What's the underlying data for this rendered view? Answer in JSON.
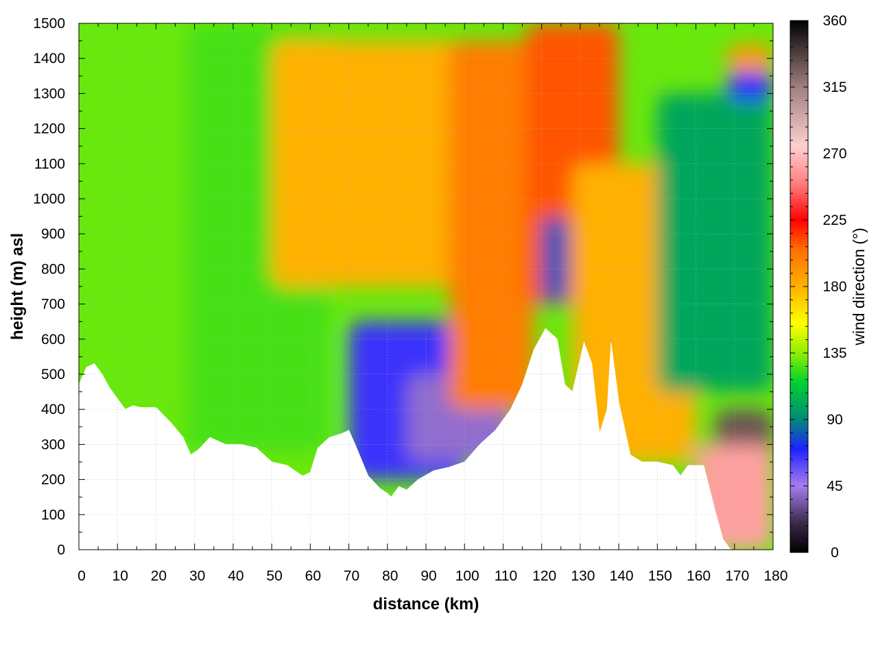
{
  "chart_data": {
    "type": "heatmap",
    "title": "",
    "xlabel": "distance (km)",
    "ylabel": "height (m) asl",
    "xlim": [
      0,
      180
    ],
    "ylim": [
      0,
      1500
    ],
    "x_ticks": [
      0,
      10,
      20,
      30,
      40,
      50,
      60,
      70,
      80,
      90,
      100,
      110,
      120,
      130,
      140,
      150,
      160,
      170,
      180
    ],
    "y_ticks": [
      0,
      100,
      200,
      300,
      400,
      500,
      600,
      700,
      800,
      900,
      1000,
      1100,
      1200,
      1300,
      1400,
      1500
    ],
    "grid": true,
    "colorbar": {
      "label": "wind direction (°)",
      "range": [
        0,
        360
      ],
      "ticks": [
        0,
        45,
        90,
        135,
        180,
        225,
        270,
        315,
        360
      ],
      "colors": [
        {
          "value": 0,
          "color": "#000000"
        },
        {
          "value": 20,
          "color": "#3a2a4a"
        },
        {
          "value": 45,
          "color": "#a57ef0"
        },
        {
          "value": 70,
          "color": "#2020ff"
        },
        {
          "value": 90,
          "color": "#008a7a"
        },
        {
          "value": 115,
          "color": "#00d030"
        },
        {
          "value": 135,
          "color": "#8cf000"
        },
        {
          "value": 155,
          "color": "#ffff00"
        },
        {
          "value": 180,
          "color": "#ffb000"
        },
        {
          "value": 205,
          "color": "#ff7000"
        },
        {
          "value": 225,
          "color": "#ff0000"
        },
        {
          "value": 250,
          "color": "#ff8080"
        },
        {
          "value": 275,
          "color": "#ffd0d0"
        },
        {
          "value": 315,
          "color": "#a08080"
        },
        {
          "value": 360,
          "color": "#000000"
        }
      ]
    },
    "terrain_height_m": [
      [
        0,
        470
      ],
      [
        2,
        520
      ],
      [
        4,
        530
      ],
      [
        6,
        500
      ],
      [
        8,
        460
      ],
      [
        10,
        430
      ],
      [
        12,
        400
      ],
      [
        14,
        410
      ],
      [
        16,
        405
      ],
      [
        20,
        405
      ],
      [
        24,
        360
      ],
      [
        27,
        320
      ],
      [
        29,
        270
      ],
      [
        31,
        285
      ],
      [
        34,
        320
      ],
      [
        38,
        300
      ],
      [
        42,
        300
      ],
      [
        46,
        290
      ],
      [
        50,
        250
      ],
      [
        54,
        240
      ],
      [
        58,
        210
      ],
      [
        60,
        220
      ],
      [
        62,
        290
      ],
      [
        65,
        320
      ],
      [
        68,
        330
      ],
      [
        70,
        340
      ],
      [
        72,
        290
      ],
      [
        75,
        210
      ],
      [
        78,
        175
      ],
      [
        80,
        160
      ],
      [
        81,
        150
      ],
      [
        83,
        180
      ],
      [
        85,
        170
      ],
      [
        88,
        200
      ],
      [
        92,
        225
      ],
      [
        96,
        235
      ],
      [
        100,
        250
      ],
      [
        104,
        300
      ],
      [
        108,
        340
      ],
      [
        112,
        400
      ],
      [
        115,
        470
      ],
      [
        118,
        570
      ],
      [
        121,
        630
      ],
      [
        124,
        600
      ],
      [
        126,
        470
      ],
      [
        128,
        450
      ],
      [
        131,
        590
      ],
      [
        133,
        530
      ],
      [
        135,
        330
      ],
      [
        137,
        400
      ],
      [
        138,
        590
      ],
      [
        140,
        420
      ],
      [
        143,
        270
      ],
      [
        146,
        250
      ],
      [
        150,
        250
      ],
      [
        154,
        240
      ],
      [
        156,
        210
      ],
      [
        158,
        240
      ],
      [
        162,
        240
      ],
      [
        165,
        110
      ],
      [
        167,
        30
      ],
      [
        169,
        0
      ],
      [
        180,
        0
      ]
    ],
    "regions": [
      {
        "x": [
          0,
          28
        ],
        "y": [
          420,
          1500
        ],
        "direction_deg": 130
      },
      {
        "x": [
          28,
          65
        ],
        "y": [
          280,
          1500
        ],
        "direction_deg": 125
      },
      {
        "x": [
          50,
          100
        ],
        "y": [
          750,
          1450
        ],
        "direction_deg": 180
      },
      {
        "x": [
          70,
          100
        ],
        "y": [
          200,
          650
        ],
        "direction_deg": 65
      },
      {
        "x": [
          85,
          112
        ],
        "y": [
          250,
          500
        ],
        "direction_deg": 40
      },
      {
        "x": [
          96,
          118
        ],
        "y": [
          400,
          1450
        ],
        "direction_deg": 200
      },
      {
        "x": [
          116,
          140
        ],
        "y": [
          700,
          1500
        ],
        "direction_deg": 210
      },
      {
        "x": [
          120,
          127
        ],
        "y": [
          700,
          950
        ],
        "direction_deg": 80
      },
      {
        "x": [
          128,
          160
        ],
        "y": [
          250,
          1100
        ],
        "direction_deg": 180
      },
      {
        "x": [
          150,
          180
        ],
        "y": [
          450,
          1300
        ],
        "direction_deg": 100
      },
      {
        "x": [
          168,
          180
        ],
        "y": [
          1280,
          1360
        ],
        "direction_deg": 70
      },
      {
        "x": [
          168,
          180
        ],
        "y": [
          1360,
          1440
        ],
        "direction_deg": 190
      },
      {
        "x": [
          165,
          180
        ],
        "y": [
          100,
          400
        ],
        "direction_deg": 330
      },
      {
        "x": [
          160,
          180
        ],
        "y": [
          0,
          300
        ],
        "direction_deg": 260
      }
    ]
  }
}
